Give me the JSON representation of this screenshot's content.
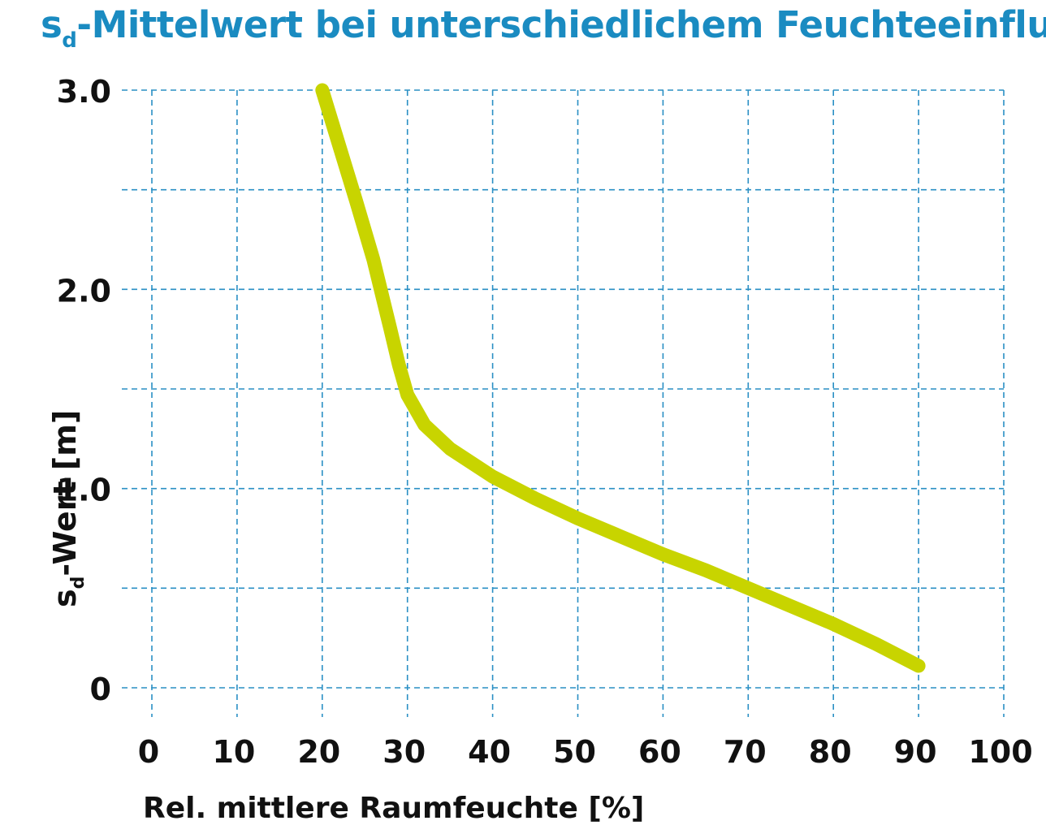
{
  "chart_data": {
    "type": "line",
    "title": "s",
    "title_sub": "d",
    "title_rest": "-Mittelwert bei unterschiedlichem Feuchteeinfluss",
    "xlabel": "Rel. mittlere Raumfeuchte [%]",
    "ylabel_main": "s",
    "ylabel_sub": "d",
    "ylabel_rest": "-Wert [m]",
    "xlim": [
      0,
      100
    ],
    "ylim": [
      0,
      3.0
    ],
    "x_ticks": [
      0,
      10,
      20,
      30,
      40,
      50,
      60,
      70,
      80,
      90,
      100
    ],
    "x_tick_labels": [
      "0",
      "10",
      "20",
      "30",
      "40",
      "50",
      "60",
      "70",
      "80",
      "90",
      "100"
    ],
    "y_ticks": [
      0,
      1.0,
      2.0,
      3.0
    ],
    "y_tick_labels": [
      "0",
      "1.0",
      "2.0",
      "3.0"
    ],
    "y_grid": [
      0,
      0.5,
      1.0,
      1.5,
      2.0,
      2.5,
      3.0
    ],
    "grid": true,
    "colors": {
      "line": "#c8d400",
      "grid": "#2a8fc4",
      "title": "#1a8bc1",
      "text": "#111111"
    },
    "series": [
      {
        "x": [
          20,
          22,
          24,
          26,
          28,
          29,
          30,
          32,
          35,
          40,
          45,
          50,
          55,
          60,
          65,
          70,
          75,
          80,
          85,
          90
        ],
        "y": [
          3.0,
          2.72,
          2.44,
          2.15,
          1.8,
          1.62,
          1.47,
          1.32,
          1.2,
          1.06,
          0.95,
          0.85,
          0.76,
          0.67,
          0.59,
          0.5,
          0.41,
          0.32,
          0.22,
          0.11
        ]
      }
    ]
  }
}
